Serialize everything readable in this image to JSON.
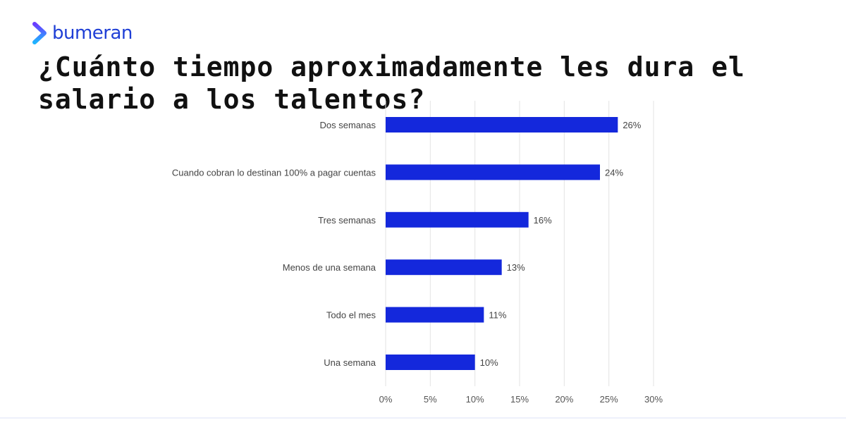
{
  "brand": {
    "name": "bumeran",
    "colors": {
      "logo_text": "#1f3fd6",
      "logo_mark_top": "#6b3bff",
      "logo_mark_bottom": "#1fb4ff"
    }
  },
  "title": "¿Cuánto tiempo aproximadamente les dura el salario a los talentos?",
  "chart_data": {
    "type": "bar",
    "orientation": "horizontal",
    "title": "",
    "xlabel": "",
    "ylabel": "",
    "categories": [
      "Dos semanas",
      "Cuando cobran lo destinan 100% a pagar cuentas",
      "Tres semanas",
      "Menos de una semana",
      "Todo el mes",
      "Una semana"
    ],
    "values": [
      26,
      24,
      16,
      13,
      11,
      10
    ],
    "value_labels": [
      "26%",
      "24%",
      "16%",
      "13%",
      "11%",
      "10%"
    ],
    "xlim": [
      0,
      30
    ],
    "x_ticks": [
      0,
      5,
      10,
      15,
      20,
      25,
      30
    ],
    "x_tick_labels": [
      "0%",
      "5%",
      "10%",
      "15%",
      "20%",
      "25%",
      "30%"
    ],
    "grid": true,
    "legend": "none",
    "bar_color": "#1428dc"
  }
}
